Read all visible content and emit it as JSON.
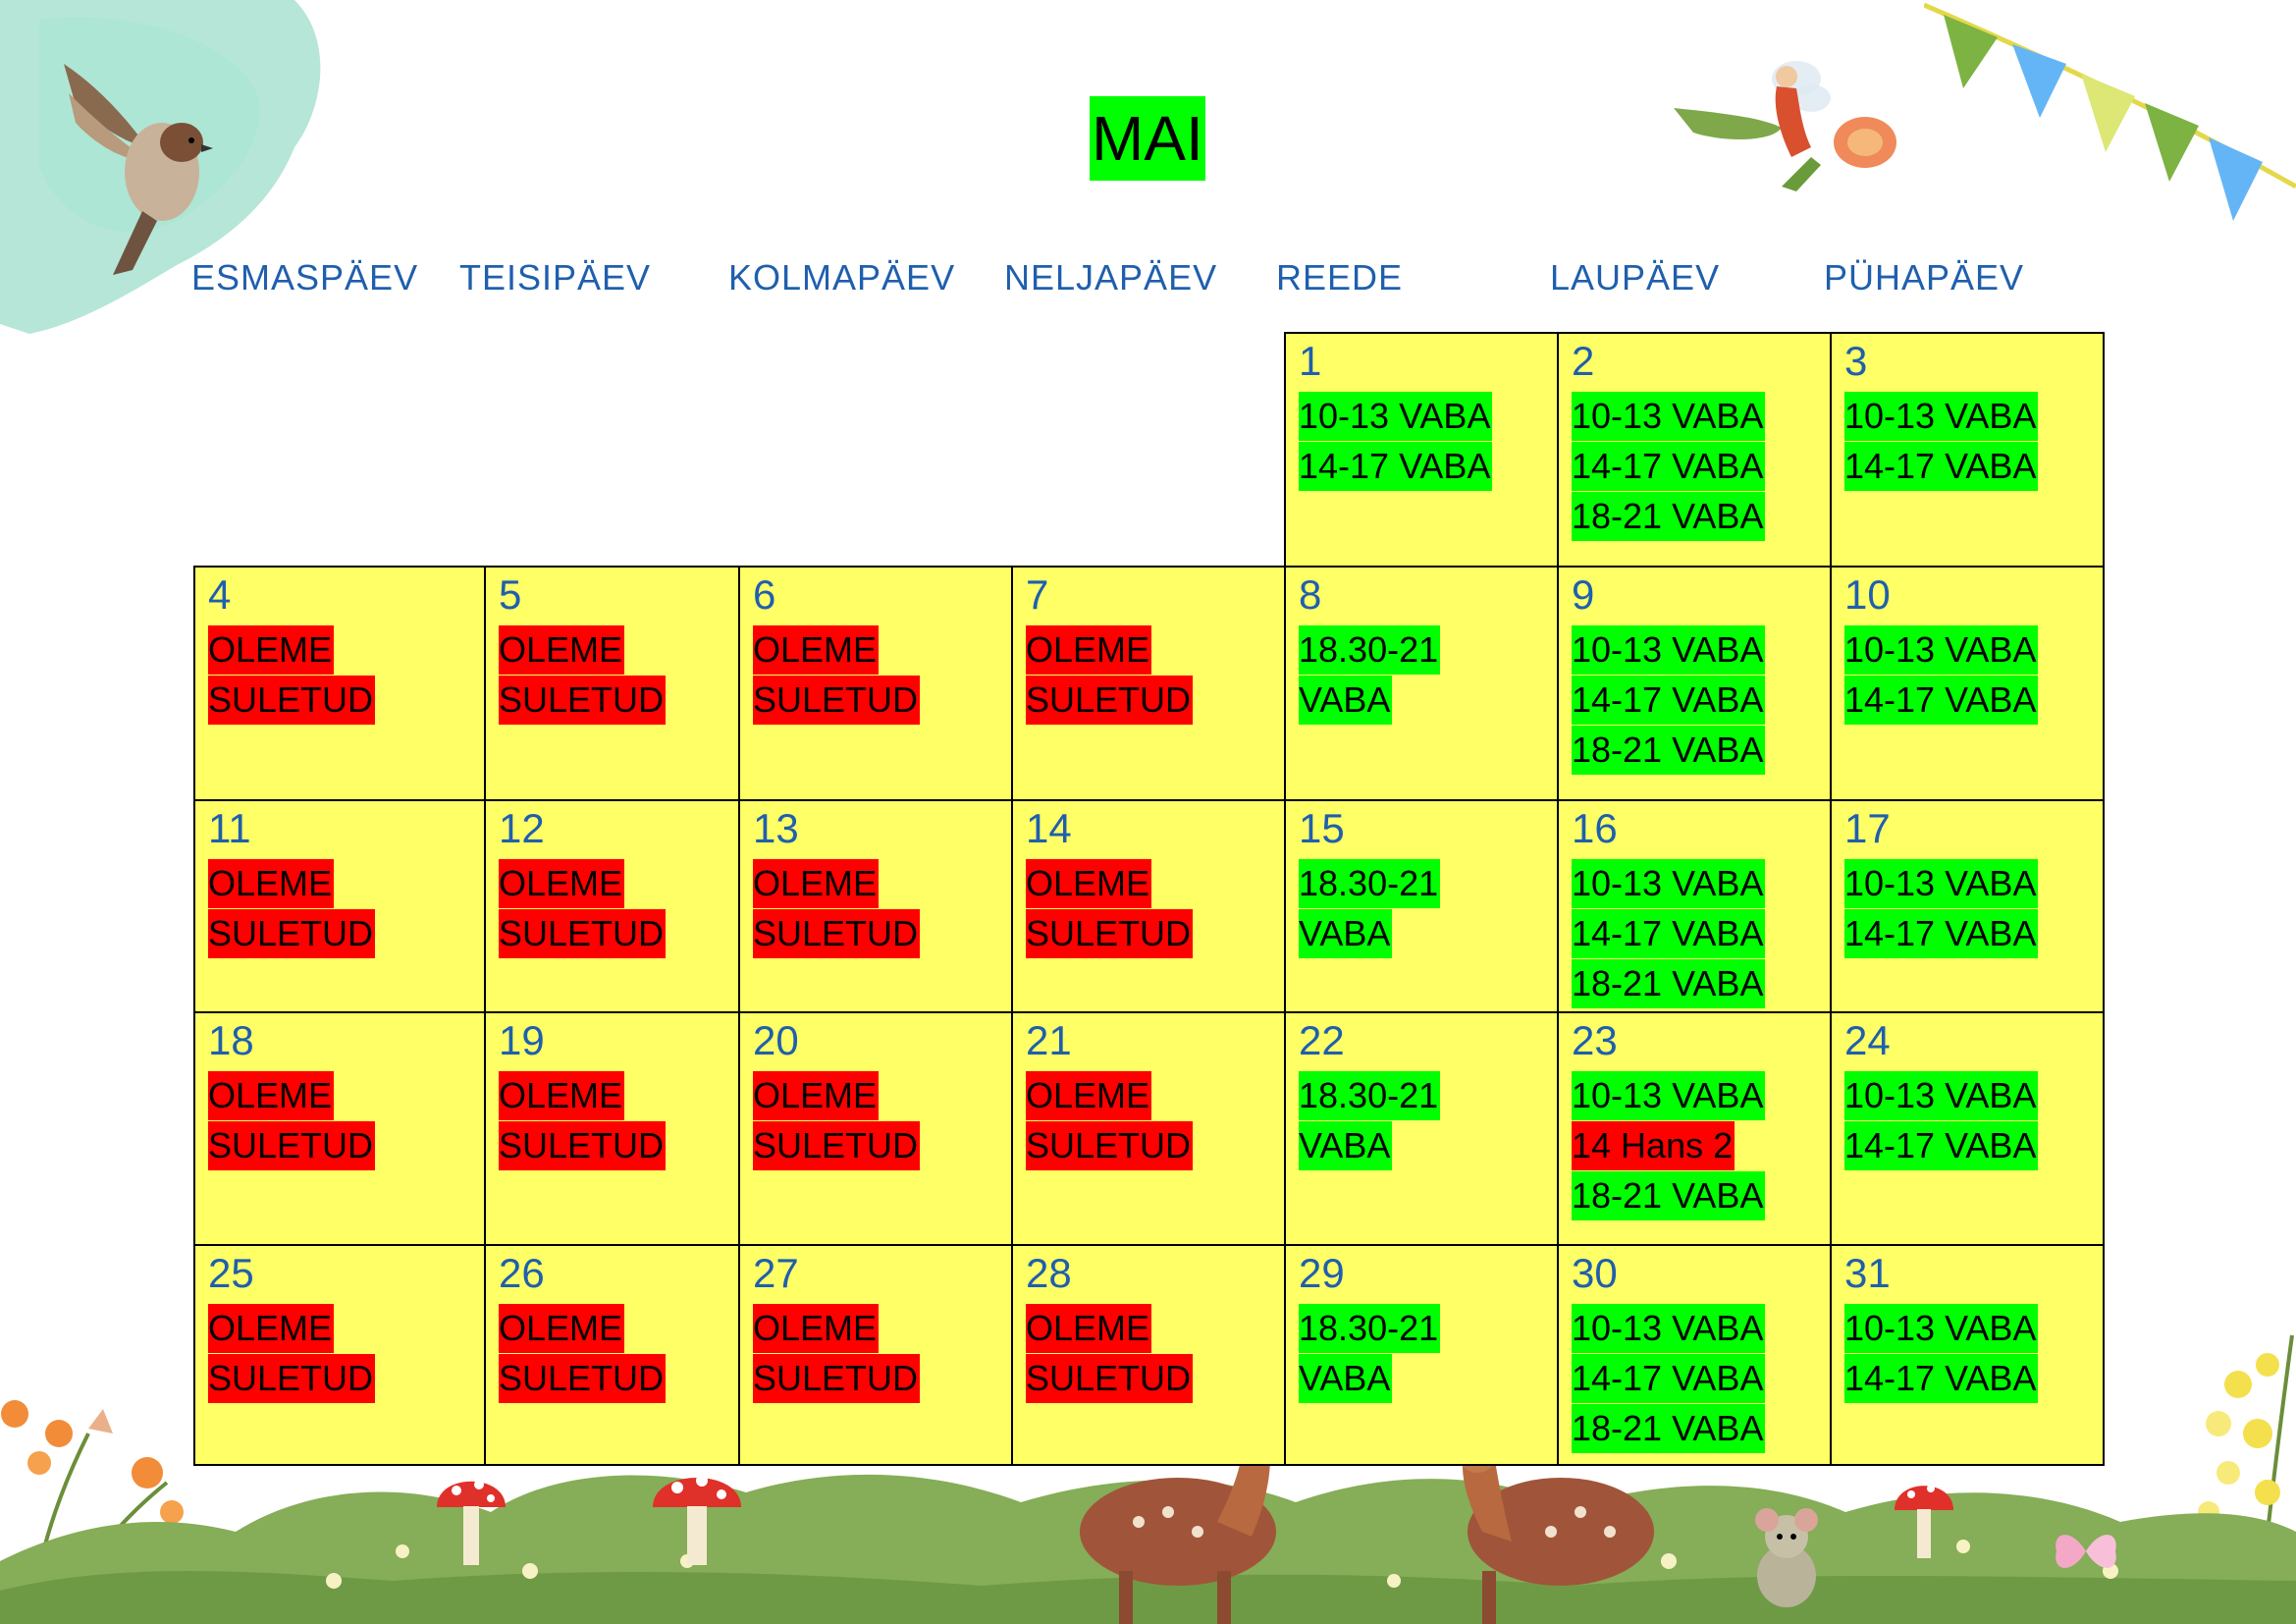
{
  "month": "MAI",
  "weekdays": [
    "ESMASPÄEV",
    "TEISIPÄEV",
    "KOLMAPÄEV",
    "NELJAPÄEV",
    "REEDE",
    "LAUPÄEV",
    "PÜHAPÄEV"
  ],
  "colors": {
    "free": "#00ff00",
    "closed": "#ff0000",
    "cell": "#ffff66",
    "daynum": "#1f5fad"
  },
  "days": [
    {
      "day": "1",
      "col": 4,
      "row": 0,
      "slots": [
        {
          "t": "10-13 VABA",
          "s": "free"
        },
        {
          "t": "14-17 VABA",
          "s": "free"
        }
      ]
    },
    {
      "day": "2",
      "col": 5,
      "row": 0,
      "slots": [
        {
          "t": "10-13 VABA",
          "s": "free"
        },
        {
          "t": "14-17 VABA",
          "s": "free"
        },
        {
          "t": "18-21 VABA",
          "s": "free"
        }
      ]
    },
    {
      "day": "3",
      "col": 6,
      "row": 0,
      "slots": [
        {
          "t": "10-13 VABA",
          "s": "free"
        },
        {
          "t": "14-17 VABA",
          "s": "free"
        }
      ]
    },
    {
      "day": "4",
      "col": 0,
      "row": 1,
      "slots": [
        {
          "t": "OLEME",
          "s": "closed"
        },
        {
          "t": "SULETUD",
          "s": "closed"
        }
      ]
    },
    {
      "day": "5",
      "col": 1,
      "row": 1,
      "slots": [
        {
          "t": "OLEME",
          "s": "closed"
        },
        {
          "t": "SULETUD",
          "s": "closed"
        }
      ]
    },
    {
      "day": "6",
      "col": 2,
      "row": 1,
      "slots": [
        {
          "t": "OLEME",
          "s": "closed"
        },
        {
          "t": "SULETUD",
          "s": "closed"
        }
      ]
    },
    {
      "day": "7",
      "col": 3,
      "row": 1,
      "slots": [
        {
          "t": "OLEME",
          "s": "closed"
        },
        {
          "t": "SULETUD",
          "s": "closed"
        }
      ]
    },
    {
      "day": "8",
      "col": 4,
      "row": 1,
      "slots": [
        {
          "t": "18.30-21",
          "s": "free"
        },
        {
          "t": "VABA",
          "s": "free"
        }
      ]
    },
    {
      "day": "9",
      "col": 5,
      "row": 1,
      "slots": [
        {
          "t": "10-13 VABA",
          "s": "free"
        },
        {
          "t": "14-17 VABA",
          "s": "free"
        },
        {
          "t": "18-21 VABA",
          "s": "free"
        }
      ]
    },
    {
      "day": "10",
      "col": 6,
      "row": 1,
      "slots": [
        {
          "t": "10-13 VABA",
          "s": "free"
        },
        {
          "t": "14-17 VABA",
          "s": "free"
        }
      ]
    },
    {
      "day": "11",
      "col": 0,
      "row": 2,
      "slots": [
        {
          "t": "OLEME",
          "s": "closed"
        },
        {
          "t": "SULETUD",
          "s": "closed"
        }
      ]
    },
    {
      "day": "12",
      "col": 1,
      "row": 2,
      "slots": [
        {
          "t": "OLEME",
          "s": "closed"
        },
        {
          "t": "SULETUD",
          "s": "closed"
        }
      ]
    },
    {
      "day": "13",
      "col": 2,
      "row": 2,
      "slots": [
        {
          "t": "OLEME",
          "s": "closed"
        },
        {
          "t": "SULETUD",
          "s": "closed"
        }
      ]
    },
    {
      "day": "14",
      "col": 3,
      "row": 2,
      "slots": [
        {
          "t": "OLEME",
          "s": "closed"
        },
        {
          "t": "SULETUD",
          "s": "closed"
        }
      ]
    },
    {
      "day": "15",
      "col": 4,
      "row": 2,
      "slots": [
        {
          "t": "18.30-21",
          "s": "free"
        },
        {
          "t": "VABA",
          "s": "free"
        }
      ]
    },
    {
      "day": "16",
      "col": 5,
      "row": 2,
      "slots": [
        {
          "t": "10-13 VABA",
          "s": "free"
        },
        {
          "t": "14-17 VABA",
          "s": "free"
        },
        {
          "t": "18-21 VABA",
          "s": "free"
        }
      ]
    },
    {
      "day": "17",
      "col": 6,
      "row": 2,
      "slots": [
        {
          "t": "10-13 VABA",
          "s": "free"
        },
        {
          "t": "14-17 VABA",
          "s": "free"
        }
      ]
    },
    {
      "day": "18",
      "col": 0,
      "row": 3,
      "slots": [
        {
          "t": "OLEME",
          "s": "closed"
        },
        {
          "t": "SULETUD",
          "s": "closed"
        }
      ]
    },
    {
      "day": "19",
      "col": 1,
      "row": 3,
      "slots": [
        {
          "t": "OLEME",
          "s": "closed"
        },
        {
          "t": "SULETUD",
          "s": "closed"
        }
      ]
    },
    {
      "day": "20",
      "col": 2,
      "row": 3,
      "slots": [
        {
          "t": "OLEME",
          "s": "closed"
        },
        {
          "t": "SULETUD",
          "s": "closed"
        }
      ]
    },
    {
      "day": "21",
      "col": 3,
      "row": 3,
      "slots": [
        {
          "t": "OLEME",
          "s": "closed"
        },
        {
          "t": "SULETUD",
          "s": "closed"
        }
      ]
    },
    {
      "day": "22",
      "col": 4,
      "row": 3,
      "slots": [
        {
          "t": "18.30-21",
          "s": "free"
        },
        {
          "t": "VABA",
          "s": "free"
        }
      ]
    },
    {
      "day": "23",
      "col": 5,
      "row": 3,
      "slots": [
        {
          "t": "10-13 VABA",
          "s": "free"
        },
        {
          "t": "14 Hans 2",
          "s": "closed"
        },
        {
          "t": "18-21 VABA",
          "s": "free"
        }
      ]
    },
    {
      "day": "24",
      "col": 6,
      "row": 3,
      "slots": [
        {
          "t": "10-13 VABA",
          "s": "free"
        },
        {
          "t": "14-17 VABA",
          "s": "free"
        }
      ]
    },
    {
      "day": "25",
      "col": 0,
      "row": 4,
      "slots": [
        {
          "t": "OLEME",
          "s": "closed"
        },
        {
          "t": "SULETUD",
          "s": "closed"
        }
      ]
    },
    {
      "day": "26",
      "col": 1,
      "row": 4,
      "slots": [
        {
          "t": "OLEME",
          "s": "closed"
        },
        {
          "t": "SULETUD",
          "s": "closed"
        }
      ]
    },
    {
      "day": "27",
      "col": 2,
      "row": 4,
      "slots": [
        {
          "t": "OLEME",
          "s": "closed"
        },
        {
          "t": "SULETUD",
          "s": "closed"
        }
      ]
    },
    {
      "day": "28",
      "col": 3,
      "row": 4,
      "slots": [
        {
          "t": "OLEME",
          "s": "closed"
        },
        {
          "t": "SULETUD",
          "s": "closed"
        }
      ]
    },
    {
      "day": "29",
      "col": 4,
      "row": 4,
      "slots": [
        {
          "t": "18.30-21",
          "s": "free"
        },
        {
          "t": "VABA",
          "s": "free"
        }
      ]
    },
    {
      "day": "30",
      "col": 5,
      "row": 4,
      "slots": [
        {
          "t": "10-13 VABA",
          "s": "free"
        },
        {
          "t": "14-17 VABA",
          "s": "free"
        },
        {
          "t": "18-21 VABA",
          "s": "free"
        }
      ]
    },
    {
      "day": "31",
      "col": 6,
      "row": 4,
      "slots": [
        {
          "t": "10-13 VABA",
          "s": "free"
        },
        {
          "t": "14-17 VABA",
          "s": "free"
        }
      ]
    }
  ],
  "decorations": [
    "watercolor-splash",
    "sparrow-illustration",
    "fairy-illustration",
    "bunting-flags",
    "flowers-left",
    "flowers-right",
    "bushes-ground",
    "mushroom-illustration",
    "deer-illustration",
    "mouse-illustration",
    "butterfly-illustration"
  ]
}
